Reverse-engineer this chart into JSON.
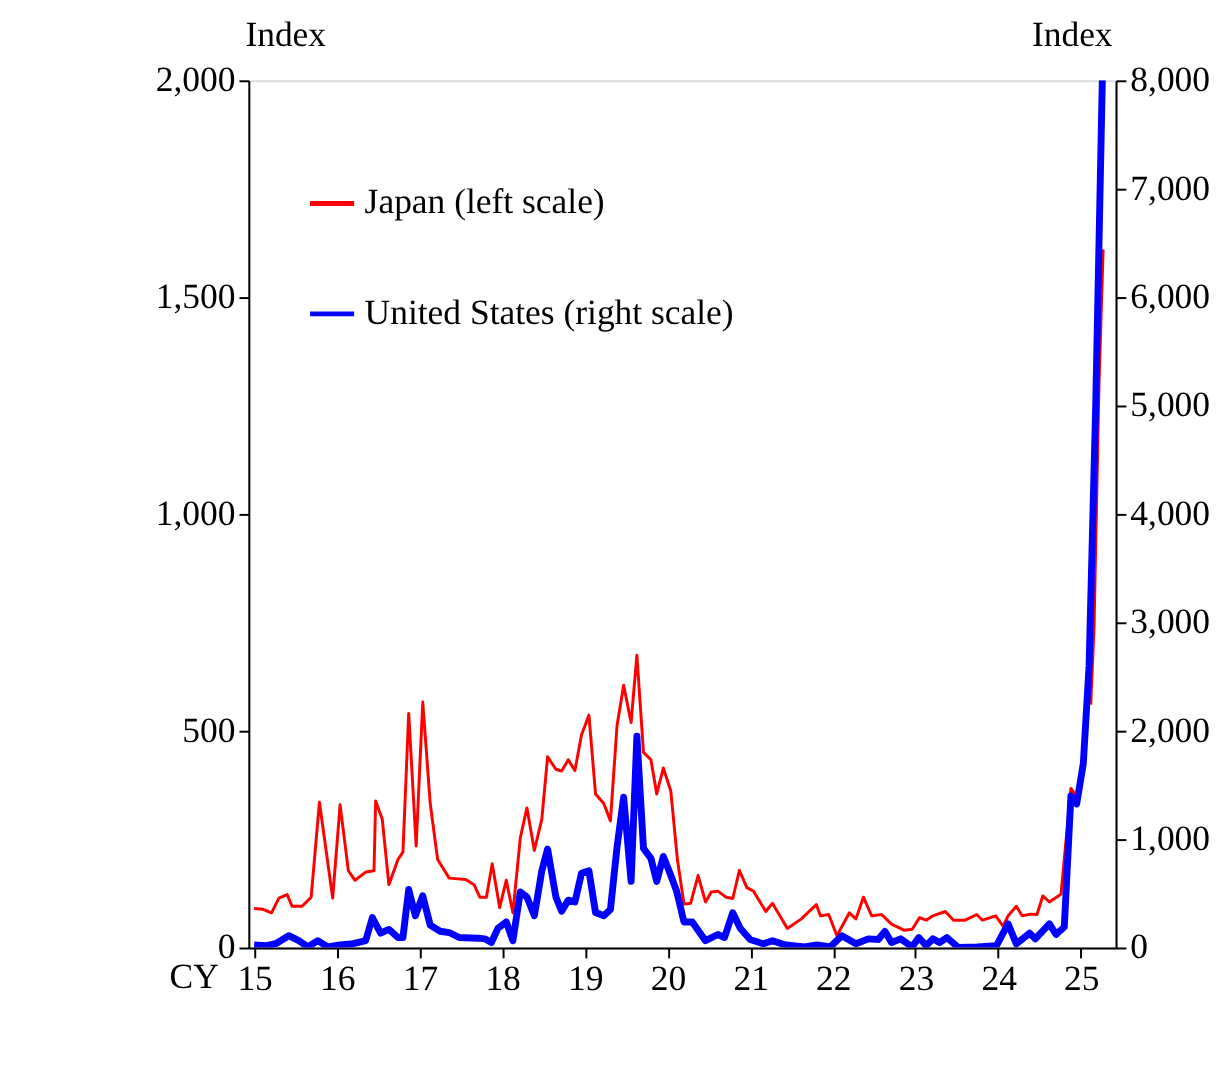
{
  "chart_data": {
    "type": "line",
    "xlabel": "CY",
    "ylabel": "Index",
    "y2label": "Index",
    "xlim": [
      2014.93,
      2025.42
    ],
    "xticks": [
      {
        "value": 2015,
        "label": "15"
      },
      {
        "value": 2016,
        "label": "16"
      },
      {
        "value": 2017,
        "label": "17"
      },
      {
        "value": 2018,
        "label": "18"
      },
      {
        "value": 2019,
        "label": "19"
      },
      {
        "value": 2020,
        "label": "20"
      },
      {
        "value": 2021,
        "label": "21"
      },
      {
        "value": 2022,
        "label": "22"
      },
      {
        "value": 2023,
        "label": "23"
      },
      {
        "value": 2024,
        "label": "24"
      },
      {
        "value": 2025,
        "label": "25"
      }
    ],
    "ylim": [
      0,
      2000
    ],
    "yticks": [
      {
        "value": 0,
        "label": "0"
      },
      {
        "value": 500,
        "label": "500"
      },
      {
        "value": 1000,
        "label": "1,000"
      },
      {
        "value": 1500,
        "label": "1,500"
      },
      {
        "value": 2000,
        "label": "2,000"
      }
    ],
    "y2lim": [
      0,
      8000
    ],
    "y2ticks": [
      {
        "value": 0,
        "label": "0"
      },
      {
        "value": 1000,
        "label": "1,000"
      },
      {
        "value": 2000,
        "label": "2,000"
      },
      {
        "value": 3000,
        "label": "3,000"
      },
      {
        "value": 4000,
        "label": "4,000"
      },
      {
        "value": 5000,
        "label": "5,000"
      },
      {
        "value": 6000,
        "label": "6,000"
      },
      {
        "value": 7000,
        "label": "7,000"
      },
      {
        "value": 8000,
        "label": "8,000"
      }
    ],
    "grid": false,
    "legend": "top left",
    "marker": "none",
    "line_style": "solid",
    "series": [
      {
        "name": "Japan (left scale)",
        "color": "#ff0000",
        "x": [
          2015.0,
          2015.11,
          2015.21,
          2015.3,
          2015.4,
          2015.46,
          2015.58,
          2015.69,
          2015.79,
          2015.95,
          2016.04,
          2016.14,
          2016.22,
          2016.35,
          2016.45,
          2016.47,
          2016.55,
          2016.63,
          2016.74,
          2016.8,
          2016.87,
          2016.96,
          2017.04,
          2017.13,
          2017.22,
          2017.36,
          2017.56,
          2017.66,
          2017.73,
          2017.81,
          2017.88,
          2017.97,
          2018.05,
          2018.13,
          2018.22,
          2018.3,
          2018.39,
          2018.48,
          2018.55,
          2018.65,
          2018.72,
          2018.8,
          2018.88,
          2018.96,
          2019.05,
          2019.13,
          2019.23,
          2019.31,
          2019.39,
          2019.47,
          2019.56,
          2019.63,
          2019.71,
          2019.8,
          2019.87,
          2019.95,
          2020.04,
          2020.12,
          2020.2,
          2020.28,
          2020.37,
          2020.46,
          2020.53,
          2020.61,
          2020.71,
          2020.79,
          2020.87,
          2020.96,
          2021.04,
          2021.19,
          2021.27,
          2021.45,
          2021.62,
          2021.8,
          2021.85,
          2021.95,
          2022.05,
          2022.2,
          2022.28,
          2022.37,
          2022.47,
          2022.59,
          2022.71,
          2022.86,
          2022.96,
          2023.05,
          2023.13,
          2023.21,
          2023.36,
          2023.46,
          2023.6,
          2023.74,
          2023.81,
          2023.97,
          2024.06,
          2024.12,
          2024.22,
          2024.29,
          2024.39,
          2024.47,
          2024.54,
          2024.62,
          2024.76,
          2024.88,
          2024.95,
          2025.04,
          2025.12,
          2025.16,
          2025.22,
          2025.27
        ],
        "values": [
          90,
          88,
          80,
          114,
          122,
          95,
          95,
          116,
          335,
          114,
          329,
          177,
          155,
          174,
          177,
          338,
          296,
          145,
          203,
          220,
          540,
          234,
          566,
          332,
          203,
          160,
          157,
          145,
          116,
          116,
          193,
          92,
          155,
          80,
          253,
          322,
          224,
          296,
          440,
          411,
          407,
          433,
          408,
          490,
          536,
          354,
          332,
          292,
          512,
          605,
          519,
          674,
          450,
          433,
          354,
          414,
          361,
          203,
          100,
          102,
          166,
          105,
          128,
          130,
          116,
          113,
          178,
          138,
          130,
          83,
          102,
          44,
          66,
          99,
          73,
          76,
          27,
          80,
          66,
          116,
          73,
          76,
          54,
          40,
          42,
          69,
          63,
          73,
          83,
          63,
          63,
          76,
          63,
          73,
          49,
          73,
          95,
          73,
          77,
          76,
          119,
          105,
          123,
          367,
          348,
          null,
          560,
          740,
          1300,
          1610
        ]
      },
      {
        "name": "United States (right scale)",
        "color": "#0000ff",
        "axis": "y2",
        "x": [
          2015.0,
          2015.15,
          2015.26,
          2015.42,
          2015.54,
          2015.65,
          2015.77,
          2015.89,
          2016.04,
          2016.2,
          2016.35,
          2016.43,
          2016.53,
          2016.63,
          2016.74,
          2016.8,
          2016.87,
          2016.95,
          2017.04,
          2017.13,
          2017.25,
          2017.36,
          2017.48,
          2017.71,
          2017.79,
          2017.87,
          2017.95,
          2018.05,
          2018.13,
          2018.22,
          2018.3,
          2018.39,
          2018.48,
          2018.55,
          2018.65,
          2018.72,
          2018.8,
          2018.88,
          2018.96,
          2019.05,
          2019.13,
          2019.23,
          2019.31,
          2019.39,
          2019.47,
          2019.56,
          2019.63,
          2019.71,
          2019.8,
          2019.87,
          2019.95,
          2020.04,
          2020.11,
          2020.2,
          2020.3,
          2020.46,
          2020.61,
          2020.69,
          2020.79,
          2020.88,
          2021.0,
          2021.16,
          2021.27,
          2021.43,
          2021.66,
          2021.81,
          2021.97,
          2022.11,
          2022.28,
          2022.43,
          2022.55,
          2022.63,
          2022.71,
          2022.82,
          2022.96,
          2023.04,
          2023.13,
          2023.21,
          2023.29,
          2023.38,
          2023.52,
          2023.75,
          2023.98,
          2024.12,
          2024.22,
          2024.38,
          2024.45,
          2024.62,
          2024.7,
          2024.8,
          2024.88,
          2024.95,
          2025.03,
          2025.1,
          2025.18,
          2025.26
        ],
        "values": [
          23,
          17,
          35,
          109,
          63,
          6,
          63,
          6,
          23,
          35,
          63,
          276,
          132,
          167,
          92,
          92,
          535,
          293,
          477,
          207,
          150,
          138,
          92,
          86,
          80,
          46,
          178,
          236,
          63,
          512,
          466,
          293,
          707,
          909,
          466,
          334,
          437,
          420,
          684,
          707,
          322,
          293,
          351,
          926,
          1386,
          610,
          1949,
          914,
          822,
          610,
          840,
          667,
          521,
          235,
          235,
          63,
          120,
          92,
          321,
          178,
          74,
          34,
          63,
          23,
          6,
          23,
          6,
          109,
          34,
          80,
          74,
          149,
          46,
          80,
          6,
          92,
          17,
          80,
          46,
          92,
          0,
          6,
          17,
          218,
          34,
          132,
          80,
          218,
          120,
          189,
          1398,
          1324,
          1696,
          2600,
          5000,
          8000
        ]
      }
    ]
  }
}
